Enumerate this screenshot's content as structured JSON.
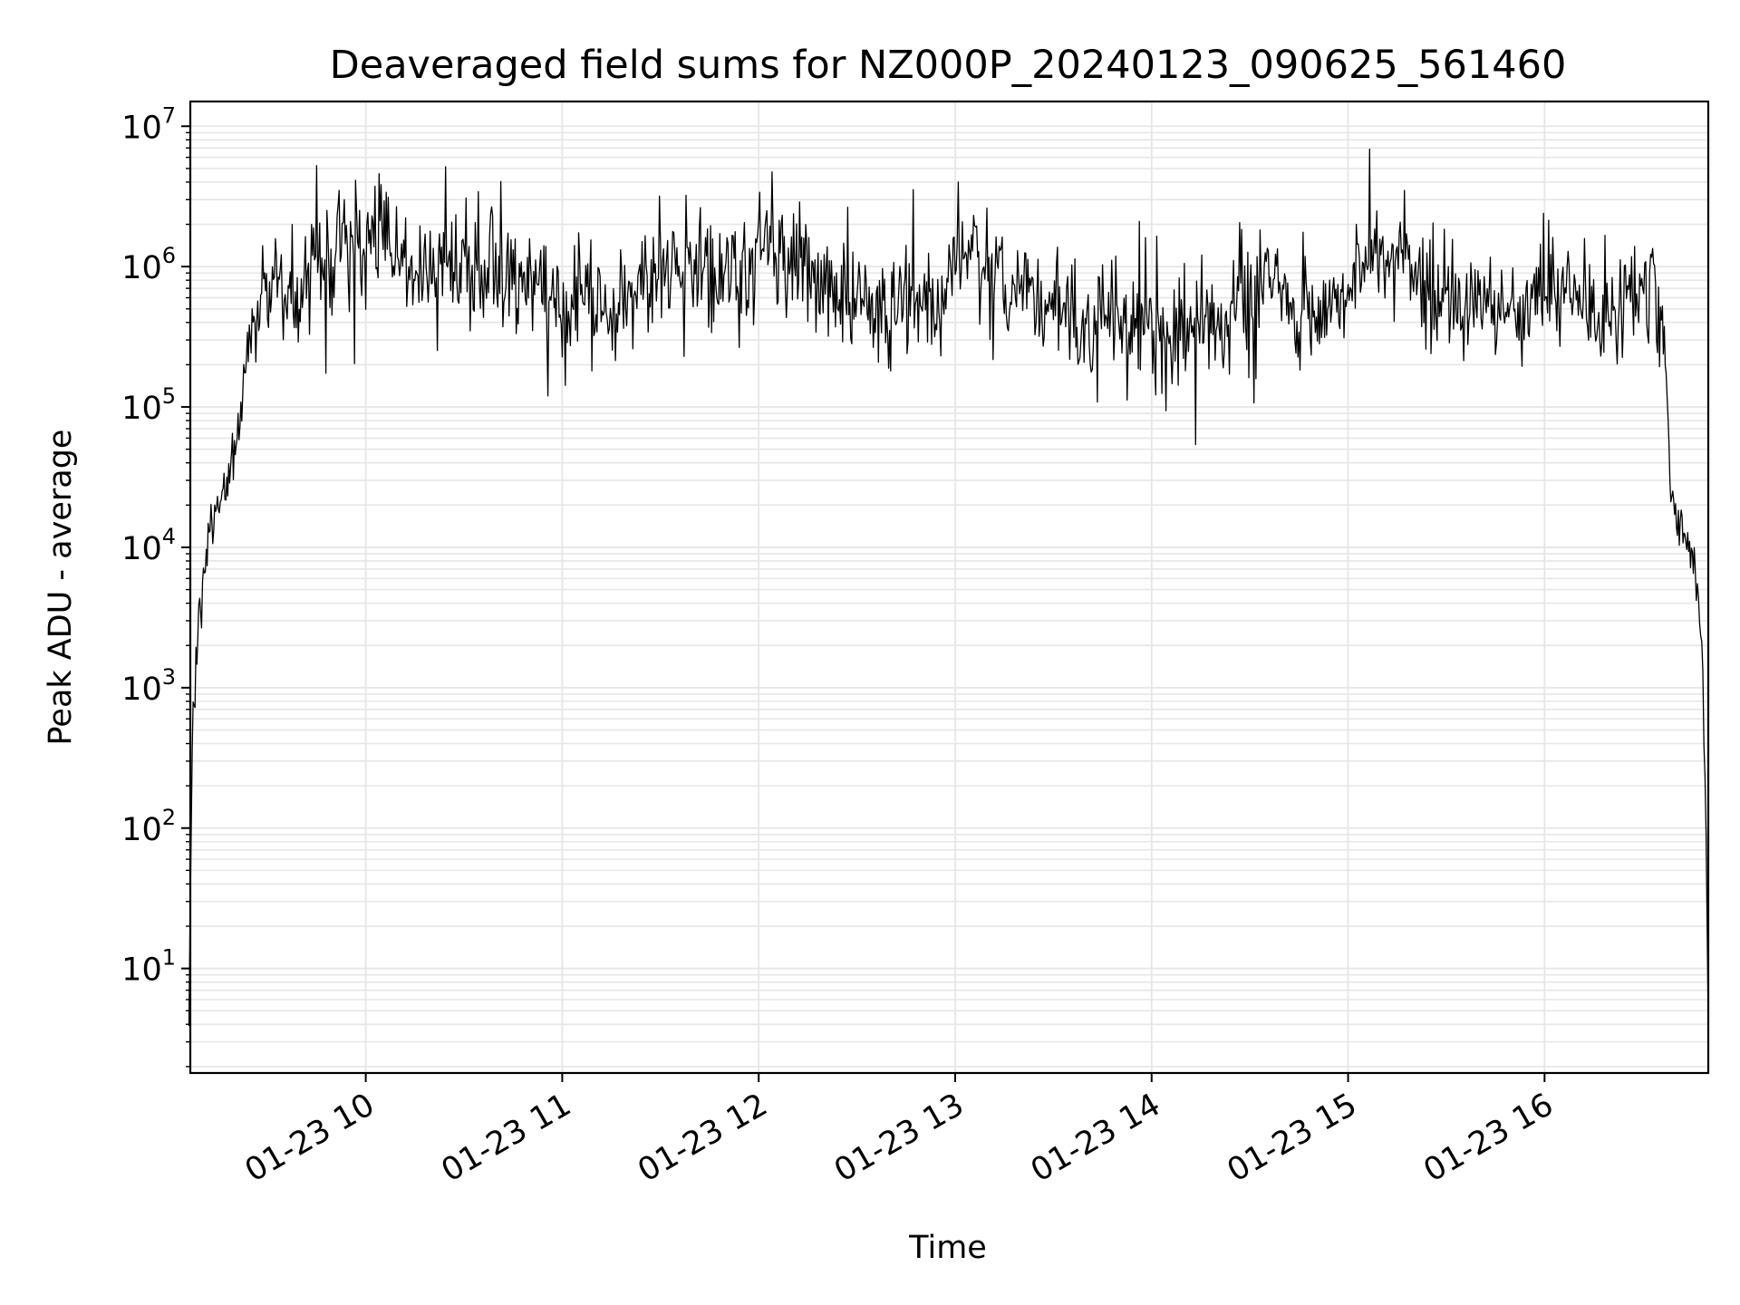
{
  "chart_data": {
    "type": "line",
    "title": "Deaveraged field sums for NZ000P_20240123_090625_561460",
    "xlabel": "Time",
    "ylabel": "Peak ADU - average",
    "yscale": "log",
    "ylim": [
      1.8,
      15000000
    ],
    "xlim": [
      "2024-01-23 09:06:25",
      "2024-01-23 16:50:00"
    ],
    "grid": true,
    "legend": "none",
    "line_color": "#000000",
    "grid_color": "#e6e6e6",
    "x_ticks": [
      {
        "value": "2024-01-23 10:00",
        "label": "01-23 10"
      },
      {
        "value": "2024-01-23 11:00",
        "label": "01-23 11"
      },
      {
        "value": "2024-01-23 12:00",
        "label": "01-23 12"
      },
      {
        "value": "2024-01-23 13:00",
        "label": "01-23 13"
      },
      {
        "value": "2024-01-23 14:00",
        "label": "01-23 14"
      },
      {
        "value": "2024-01-23 15:00",
        "label": "01-23 15"
      },
      {
        "value": "2024-01-23 16:00",
        "label": "01-23 16"
      }
    ],
    "y_ticks": [
      {
        "value": 10,
        "base": "10",
        "exp": "1"
      },
      {
        "value": 100,
        "base": "10",
        "exp": "2"
      },
      {
        "value": 1000,
        "base": "10",
        "exp": "3"
      },
      {
        "value": 10000,
        "base": "10",
        "exp": "4"
      },
      {
        "value": 100000,
        "base": "10",
        "exp": "5"
      },
      {
        "value": 1000000,
        "base": "10",
        "exp": "6"
      },
      {
        "value": 10000000,
        "base": "10",
        "exp": "7"
      }
    ],
    "series": [
      {
        "x": [
          "2024-01-23 09:06",
          "2024-01-23 09:07",
          "2024-01-23 09:09",
          "2024-01-23 09:11",
          "2024-01-23 09:13",
          "2024-01-23 09:15",
          "2024-01-23 09:17",
          "2024-01-23 09:19",
          "2024-01-23 09:21",
          "2024-01-23 09:23",
          "2024-01-23 09:25",
          "2024-01-23 09:27",
          "2024-01-23 09:30",
          "2024-01-23 09:33",
          "2024-01-23 09:36",
          "2024-01-23 09:40",
          "2024-01-23 09:45",
          "2024-01-23 09:50",
          "2024-01-23 09:55",
          "2024-01-23 10:00",
          "2024-01-23 10:05",
          "2024-01-23 10:10",
          "2024-01-23 10:15",
          "2024-01-23 10:20",
          "2024-01-23 10:25",
          "2024-01-23 10:30",
          "2024-01-23 10:35",
          "2024-01-23 10:40",
          "2024-01-23 10:45",
          "2024-01-23 10:50",
          "2024-01-23 10:55",
          "2024-01-23 11:00",
          "2024-01-23 11:05",
          "2024-01-23 11:10",
          "2024-01-23 11:15",
          "2024-01-23 11:20",
          "2024-01-23 11:25",
          "2024-01-23 11:30",
          "2024-01-23 11:35",
          "2024-01-23 11:40",
          "2024-01-23 11:45",
          "2024-01-23 11:50",
          "2024-01-23 11:55",
          "2024-01-23 12:00",
          "2024-01-23 12:05",
          "2024-01-23 12:10",
          "2024-01-23 12:15",
          "2024-01-23 12:20",
          "2024-01-23 12:25",
          "2024-01-23 12:30",
          "2024-01-23 12:35",
          "2024-01-23 12:40",
          "2024-01-23 12:45",
          "2024-01-23 12:50",
          "2024-01-23 12:55",
          "2024-01-23 13:00",
          "2024-01-23 13:05",
          "2024-01-23 13:10",
          "2024-01-23 13:15",
          "2024-01-23 13:20",
          "2024-01-23 13:25",
          "2024-01-23 13:30",
          "2024-01-23 13:35",
          "2024-01-23 13:40",
          "2024-01-23 13:45",
          "2024-01-23 13:50",
          "2024-01-23 13:55",
          "2024-01-23 14:00",
          "2024-01-23 14:05",
          "2024-01-23 14:10",
          "2024-01-23 14:15",
          "2024-01-23 14:20",
          "2024-01-23 14:25",
          "2024-01-23 14:30",
          "2024-01-23 14:35",
          "2024-01-23 14:40",
          "2024-01-23 14:45",
          "2024-01-23 14:50",
          "2024-01-23 14:55",
          "2024-01-23 15:00",
          "2024-01-23 15:05",
          "2024-01-23 15:10",
          "2024-01-23 15:15",
          "2024-01-23 15:20",
          "2024-01-23 15:25",
          "2024-01-23 15:30",
          "2024-01-23 15:35",
          "2024-01-23 15:40",
          "2024-01-23 15:45",
          "2024-01-23 15:50",
          "2024-01-23 15:55",
          "2024-01-23 16:00",
          "2024-01-23 16:05",
          "2024-01-23 16:10",
          "2024-01-23 16:15",
          "2024-01-23 16:20",
          "2024-01-23 16:25",
          "2024-01-23 16:30",
          "2024-01-23 16:33",
          "2024-01-23 16:36",
          "2024-01-23 16:38",
          "2024-01-23 16:40",
          "2024-01-23 16:42",
          "2024-01-23 16:44",
          "2024-01-23 16:46",
          "2024-01-23 16:47",
          "2024-01-23 16:48",
          "2024-01-23 16:49",
          "2024-01-23 16:50"
        ],
        "values": [
          4,
          500,
          3000,
          8000,
          15000,
          20000,
          25000,
          35000,
          60000,
          150000,
          350000,
          550000,
          600000,
          700000,
          650000,
          800000,
          900000,
          1500000,
          1300000,
          1500000,
          1800000,
          1200000,
          950000,
          900000,
          1000000,
          1050000,
          1100000,
          850000,
          750000,
          700000,
          600000,
          550000,
          600000,
          650000,
          550000,
          700000,
          750000,
          1000000,
          1100000,
          1050000,
          1100000,
          850000,
          650000,
          1700000,
          1500000,
          1200000,
          1000000,
          800000,
          700000,
          650000,
          550000,
          500000,
          600000,
          500000,
          420000,
          1800000,
          1300000,
          1000000,
          800000,
          650000,
          550000,
          450000,
          400000,
          350000,
          400000,
          420000,
          350000,
          320000,
          350000,
          300000,
          400000,
          450000,
          500000,
          550000,
          1000000,
          550000,
          450000,
          500000,
          600000,
          650000,
          1100000,
          1300000,
          1000000,
          850000,
          700000,
          600000,
          500000,
          450000,
          500000,
          550000,
          600000,
          700000,
          650000,
          500000,
          450000,
          500000,
          550000,
          700000,
          650000,
          500000,
          50000,
          12000,
          15000,
          10000,
          6000,
          3000,
          1500,
          300,
          4
        ]
      }
    ]
  }
}
